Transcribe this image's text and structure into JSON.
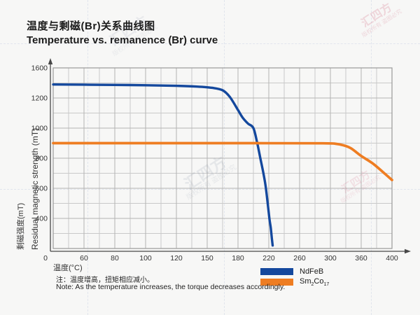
{
  "page": {
    "background": "#f7f7f6"
  },
  "header": {
    "title_zh": "温度与剩磁(Br)关系曲线图",
    "title_en": "Temperature vs. remanence (Br) curve"
  },
  "chart": {
    "grid_color": "#b3b3b3",
    "minor_grid_color": "#c9c9c9",
    "border_color": "#9a9a9a",
    "axis_color": "#474747",
    "tick_text_color": "#333333",
    "x_axis": {
      "title": "温度(°C)",
      "tick_labels": [
        "0",
        "60",
        "80",
        "100",
        "120",
        "150",
        "180",
        "220",
        "260",
        "300",
        "360",
        "400"
      ]
    },
    "y_axis": {
      "title_zh": "剩磁强度(mT)",
      "title_en": "Residual magnetic strength (mT)",
      "tick_labels": [
        "1600",
        "1200",
        "1000",
        "800",
        "600",
        "400"
      ]
    }
  },
  "legend": {
    "items": [
      {
        "label": "NdFeB",
        "color": "#14489d",
        "parts": [
          {
            "t": "NdFeB",
            "sub": false
          }
        ]
      },
      {
        "label": "Sm2Co17",
        "color": "#ee7d22",
        "parts": [
          {
            "t": "Sm",
            "sub": false
          },
          {
            "t": "2",
            "sub": true
          },
          {
            "t": "Co",
            "sub": false
          },
          {
            "t": "17",
            "sub": true
          }
        ]
      }
    ]
  },
  "notes": {
    "zh": "注：温度增高，扭矩相应减小。",
    "en": "Note: As the temperature increases, the torque decreases accordingly."
  },
  "watermark": {
    "brand": "汇四方",
    "tagline": "版权所有 盗图必究"
  },
  "chart_data": {
    "type": "line",
    "title": "温度与剩磁(Br)关系曲线图 / Temperature vs. remanence (Br) curve",
    "xlabel": "温度(°C)",
    "ylabel": "剩磁强度(mT) / Residual magnetic strength (mT)",
    "x_ticks": [
      0,
      60,
      80,
      100,
      120,
      150,
      180,
      220,
      260,
      300,
      360,
      400
    ],
    "y_ticks": [
      1600,
      1200,
      1000,
      800,
      600,
      400,
      0
    ],
    "axis_style_note": "Stylized axes: tick labels are equally spaced on screen even though value steps differ; grid has one unlabeled minor line between each labeled line.",
    "legend_position": "bottom-right",
    "series": [
      {
        "name": "NdFeB",
        "color": "#14489d",
        "points": [
          [
            0,
            1380
          ],
          [
            60,
            1377
          ],
          [
            90,
            1372
          ],
          [
            120,
            1362
          ],
          [
            140,
            1352
          ],
          [
            155,
            1335
          ],
          [
            165,
            1303
          ],
          [
            172,
            1215
          ],
          [
            180,
            1120
          ],
          [
            186,
            1070
          ],
          [
            193,
            1030
          ],
          [
            200,
            1000
          ],
          [
            205,
            900
          ],
          [
            209,
            800
          ],
          [
            213,
            700
          ],
          [
            216,
            610
          ],
          [
            219,
            480
          ],
          [
            221,
            380
          ],
          [
            222.5,
            280
          ],
          [
            224,
            130
          ],
          [
            225,
            40
          ]
        ]
      },
      {
        "name": "Sm2Co17",
        "color": "#ee7d22",
        "points": [
          [
            0,
            900
          ],
          [
            100,
            900
          ],
          [
            200,
            900
          ],
          [
            290,
            899
          ],
          [
            310,
            896
          ],
          [
            325,
            886
          ],
          [
            340,
            866
          ],
          [
            360,
            815
          ],
          [
            375,
            765
          ],
          [
            390,
            700
          ],
          [
            400,
            655
          ]
        ]
      }
    ]
  }
}
